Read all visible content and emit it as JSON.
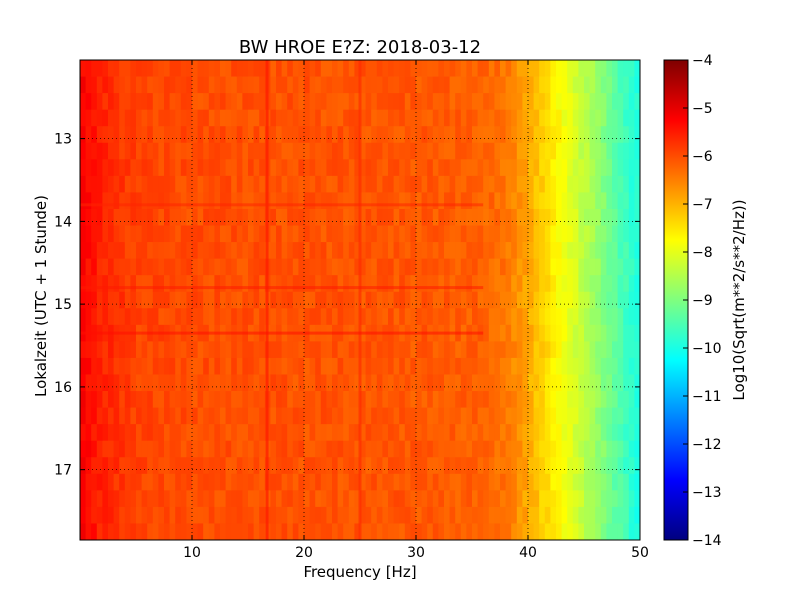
{
  "chart_data": {
    "type": "heatmap",
    "title": "BW HROE E?Z: 2018-03-12",
    "xlabel": "Frequency [Hz]",
    "ylabel": "Lokalzeit (UTC + 1 Stunde)",
    "xlim": [
      0,
      50
    ],
    "ylim": [
      12.05,
      17.85
    ],
    "y_inverted": true,
    "x_ticks": [
      10,
      20,
      30,
      40,
      50
    ],
    "y_ticks": [
      13,
      14,
      15,
      16,
      17
    ],
    "grid": true,
    "colormap": "jet",
    "colorbar": {
      "label": "Log10(Sqrt(m**2/s**2/Hz))",
      "range": [
        -14,
        -4
      ],
      "ticks": [
        -4,
        -5,
        -6,
        -7,
        -8,
        -9,
        -10,
        -11,
        -12,
        -13,
        -14
      ]
    },
    "spectrum_profile": {
      "frequency_hz": [
        0,
        2,
        5,
        10,
        20,
        30,
        36,
        38,
        40,
        42,
        44,
        46,
        48,
        50
      ],
      "level": [
        -5.2,
        -5.6,
        -5.9,
        -6.0,
        -6.05,
        -6.1,
        -6.2,
        -6.4,
        -6.9,
        -7.5,
        -8.1,
        -8.7,
        -9.4,
        -10.0
      ]
    },
    "features": [
      {
        "type": "vertical_line",
        "frequency_hz": 16.7,
        "level": -5.5
      },
      {
        "type": "vertical_line",
        "frequency_hz": 25,
        "level": -5.7
      },
      {
        "type": "horizontal_band",
        "time": 13.8,
        "level": -5.6
      },
      {
        "type": "horizontal_band",
        "time": 14.8,
        "level": -5.5
      },
      {
        "type": "horizontal_band",
        "time": 15.35,
        "level": -5.4
      }
    ]
  },
  "colors": {
    "jet": [
      "#00007f",
      "#0000ff",
      "#007fff",
      "#00ffff",
      "#7fff7f",
      "#ffff00",
      "#ff7f00",
      "#ff0000",
      "#7f0000"
    ]
  }
}
